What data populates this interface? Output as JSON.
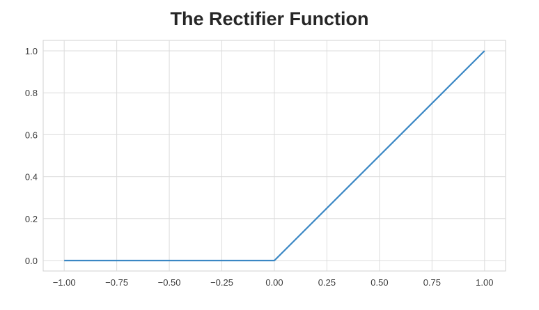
{
  "chart_data": {
    "type": "line",
    "title": "The Rectifier Function",
    "xlabel": "",
    "ylabel": "",
    "xlim": [
      -1.1,
      1.1
    ],
    "ylim": [
      -0.05,
      1.05
    ],
    "grid": true,
    "x_ticks": [
      -1.0,
      -0.75,
      -0.5,
      -0.25,
      0.0,
      0.25,
      0.5,
      0.75,
      1.0
    ],
    "x_tick_labels": [
      "−1.00",
      "−0.75",
      "−0.50",
      "−0.25",
      "0.00",
      "0.25",
      "0.50",
      "0.75",
      "1.00"
    ],
    "y_ticks": [
      0.0,
      0.2,
      0.4,
      0.6,
      0.8,
      1.0
    ],
    "y_tick_labels": [
      "0.0",
      "0.2",
      "0.4",
      "0.6",
      "0.8",
      "1.0"
    ],
    "series": [
      {
        "color": "#3a87c4",
        "x": [
          -1.0,
          0.0,
          1.0
        ],
        "y": [
          0.0,
          0.0,
          1.0
        ]
      }
    ]
  }
}
